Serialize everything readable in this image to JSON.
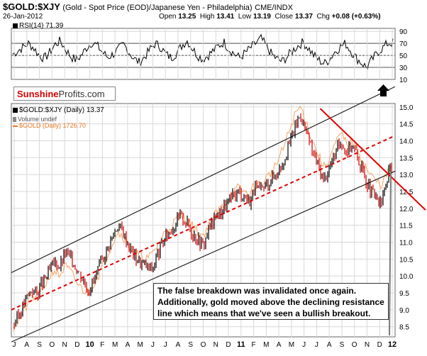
{
  "header": {
    "symbol": "$GOLD:$XJY",
    "subtitle": "(Gold - Spot Price (EOD)/Japanese Yen - Philadelphia)",
    "exchange": "CME/INDX",
    "date": "26-Jan-2012",
    "open_label": "Open",
    "open": "13.25",
    "high_label": "High",
    "high": "13.41",
    "low_label": "Low",
    "low": "13.19",
    "close_label": "Close",
    "close": "13.37",
    "chg_label": "Chg",
    "chg": "+0.08 (+0.63%)"
  },
  "rsi_label": "RSI(14) 71.39",
  "logo": {
    "part1": "Sunshine",
    "part2": "Profits.com"
  },
  "legend": {
    "main": "$GOLD:$XJY (Daily) 13.37",
    "volume": "Volume undef",
    "gold": "$GOLD (Daily) 1726.70"
  },
  "annotation": "The false breakdown was invalidated once again. Additionally, gold moved above the declining resistance line which means that we've seen a bullish breakout.",
  "colors": {
    "price": "#000000",
    "down": "#d40000",
    "gold_overlay": "#f4a460",
    "trend_dashed": "#e00000",
    "resistance": "#e00000",
    "channel": "#000000",
    "grid": "#d8d8d8"
  },
  "chart_data": [
    {
      "type": "line",
      "title": "RSI(14) 71.39",
      "y_ticks": [
        10,
        30,
        50,
        70,
        90
      ],
      "ylim": [
        10,
        95
      ],
      "reference_lines": [
        30,
        50,
        70
      ],
      "approx_values": [
        52,
        58,
        64,
        70,
        62,
        50,
        45,
        55,
        68,
        74,
        60,
        48,
        42,
        50,
        63,
        72,
        66,
        55,
        47,
        52,
        60,
        68,
        56,
        44,
        38,
        48,
        60,
        70,
        64,
        52,
        46,
        54,
        66,
        75,
        62,
        50,
        44,
        50,
        58,
        66,
        72,
        60,
        52,
        46,
        54,
        62,
        70,
        78,
        66,
        52,
        44,
        40,
        48,
        58,
        66,
        72,
        62,
        50,
        42,
        36,
        44,
        56,
        64,
        70,
        58,
        46,
        38,
        30,
        42,
        54,
        62,
        70,
        71
      ]
    },
    {
      "type": "line",
      "title": "$GOLD:$XJY (Daily) 13.37",
      "y_ticks": [
        8.5,
        9.0,
        9.5,
        10.0,
        10.5,
        11.0,
        11.5,
        12.0,
        12.5,
        13.0,
        13.5,
        14.0,
        14.5,
        15.0
      ],
      "ylim": [
        8.2,
        15.1
      ],
      "x_ticks": [
        "J",
        "A",
        "S",
        "O",
        "N",
        "D",
        "10",
        "F",
        "M",
        "A",
        "M",
        "J",
        "J",
        "A",
        "S",
        "O",
        "N",
        "D",
        "11",
        "F",
        "M",
        "A",
        "M",
        "J",
        "J",
        "A",
        "S",
        "O",
        "N",
        "D",
        "12"
      ],
      "series": [
        {
          "name": "$GOLD:$XJY (Daily) 13.37",
          "values": [
            8.6,
            8.9,
            9.3,
            9.6,
            9.5,
            9.8,
            10.1,
            10.4,
            10.3,
            10.7,
            10.5,
            10.2,
            9.9,
            9.6,
            9.9,
            10.3,
            10.7,
            11.1,
            11.5,
            11.3,
            10.9,
            10.6,
            10.4,
            10.3,
            10.2,
            10.6,
            11.0,
            11.3,
            11.5,
            11.8,
            11.6,
            11.3,
            11.1,
            10.9,
            11.4,
            11.7,
            11.9,
            12.1,
            12.3,
            12.5,
            12.4,
            12.2,
            12.6,
            12.5,
            12.7,
            12.9,
            13.1,
            13.4,
            13.9,
            14.4,
            14.8,
            14.2,
            13.7,
            13.3,
            12.8,
            13.2,
            13.6,
            14.0,
            13.7,
            13.9,
            13.5,
            13.0,
            12.6,
            12.3,
            12.1,
            12.8,
            13.37
          ]
        },
        {
          "name": "$GOLD (Daily) 1726.70",
          "values": [
            8.5,
            8.7,
            9.0,
            9.4,
            9.3,
            9.6,
            9.9,
            10.2,
            10.0,
            10.3,
            10.1,
            9.8,
            9.6,
            9.5,
            9.8,
            10.1,
            10.5,
            10.9,
            11.3,
            11.2,
            10.9,
            10.7,
            10.6,
            10.5,
            10.6,
            10.9,
            11.2,
            11.4,
            11.6,
            11.8,
            11.7,
            11.5,
            11.3,
            11.2,
            11.5,
            11.8,
            12.0,
            12.2,
            12.4,
            12.6,
            12.5,
            12.4,
            12.7,
            12.7,
            12.9,
            13.1,
            13.4,
            13.8,
            14.3,
            14.8,
            15.0,
            14.5,
            14.0,
            13.6,
            13.2,
            13.5,
            13.9,
            14.2,
            13.9,
            14.0,
            13.7,
            13.3,
            13.0,
            12.8,
            12.7,
            13.0,
            13.3
          ]
        }
      ],
      "trendlines": {
        "channel_upper": [
          [
            0,
            10.1
          ],
          [
            1,
            15.6
          ]
        ],
        "channel_lower": [
          [
            0,
            8.05
          ],
          [
            1,
            13.1
          ]
        ],
        "dashed_support": [
          [
            0,
            9.0
          ],
          [
            1,
            14.15
          ]
        ],
        "declining_resistance": [
          [
            0.805,
            14.95
          ],
          [
            1,
            12.3
          ]
        ]
      }
    }
  ]
}
